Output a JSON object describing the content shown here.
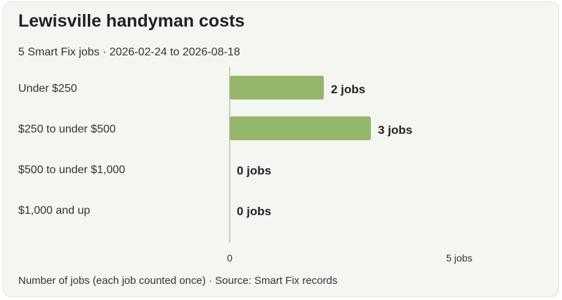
{
  "header": {
    "title": "Lewisville handyman costs",
    "subtitle": "5 Smart Fix jobs · 2026-02-24 to 2026-08-18"
  },
  "footer": {
    "note": "Number of jobs (each job counted once) · Source: Smart Fix records"
  },
  "colors": {
    "bar": "#95b56b",
    "axis": "#b9c2b0",
    "text": "#333333",
    "background": "#f4f6f1"
  },
  "chart_data": {
    "type": "bar",
    "orientation": "horizontal",
    "categories": [
      "Under $250",
      "$250 to under $500",
      "$500 to under $1,000",
      "$1,000 and up"
    ],
    "values": [
      2,
      3,
      0,
      0
    ],
    "value_labels": [
      "2 jobs",
      "3 jobs",
      "0 jobs",
      "0 jobs"
    ],
    "xlim": [
      0,
      5
    ],
    "x_ticks": [
      {
        "value": 0,
        "label": "0"
      },
      {
        "value": 5,
        "label": "5 jobs"
      }
    ],
    "grid": false,
    "legend": "none"
  }
}
